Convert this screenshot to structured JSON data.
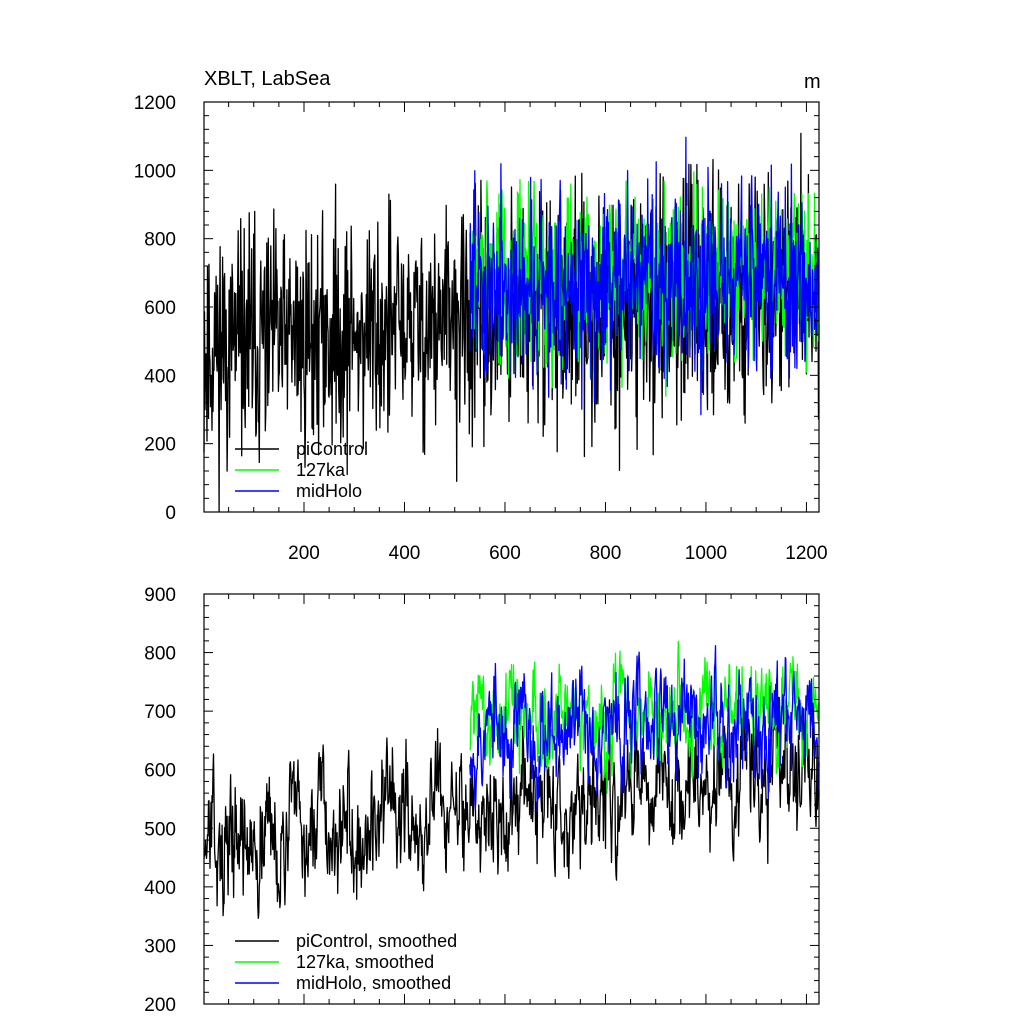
{
  "chart_data": [
    {
      "type": "line",
      "title": "XBLT, LabSea",
      "units": "m",
      "xlim": [
        1,
        1225
      ],
      "ylim": [
        0,
        1200
      ],
      "yticks": [
        0,
        200,
        400,
        600,
        800,
        1000,
        1200
      ],
      "xticks": [
        200,
        400,
        600,
        800,
        1000,
        1200
      ],
      "show_xtick_labels": true,
      "legend_position": "bottom-left",
      "series": [
        {
          "name": "piControl",
          "color": "#000000",
          "x_start": 1,
          "x_end": 1225,
          "seed": 11,
          "trend": [
            480,
            660
          ],
          "noise": 170,
          "smooth": false
        },
        {
          "name": "127ka",
          "color": "#00ff00",
          "x_start": 530,
          "x_end": 1225,
          "seed": 29,
          "trend": [
            690,
            690
          ],
          "noise": 130,
          "smooth": false
        },
        {
          "name": "midHolo",
          "color": "#0000ff",
          "x_start": 530,
          "x_end": 1225,
          "seed": 47,
          "trend": [
            660,
            690
          ],
          "noise": 140,
          "smooth": false
        }
      ]
    },
    {
      "type": "line",
      "title": "",
      "units": "",
      "xlim": [
        1,
        1225
      ],
      "ylim": [
        200,
        900
      ],
      "yticks": [
        200,
        300,
        400,
        500,
        600,
        700,
        800,
        900
      ],
      "xticks": [
        200,
        400,
        600,
        800,
        1000,
        1200
      ],
      "show_xtick_labels": false,
      "legend_position": "bottom-left",
      "series": [
        {
          "name": "piControl, smoothed",
          "color": "#000000",
          "x_start": 1,
          "x_end": 1225,
          "seed": 13,
          "trend": [
            470,
            600
          ],
          "noise": 70,
          "smooth": true
        },
        {
          "name": "127ka, smoothed",
          "color": "#00ff00",
          "x_start": 530,
          "x_end": 1225,
          "seed": 31,
          "trend": [
            690,
            700
          ],
          "noise": 55,
          "smooth": true
        },
        {
          "name": "midHolo, smoothed",
          "color": "#0000ff",
          "x_start": 530,
          "x_end": 1225,
          "seed": 53,
          "trend": [
            660,
            700
          ],
          "noise": 60,
          "smooth": true
        }
      ]
    }
  ]
}
